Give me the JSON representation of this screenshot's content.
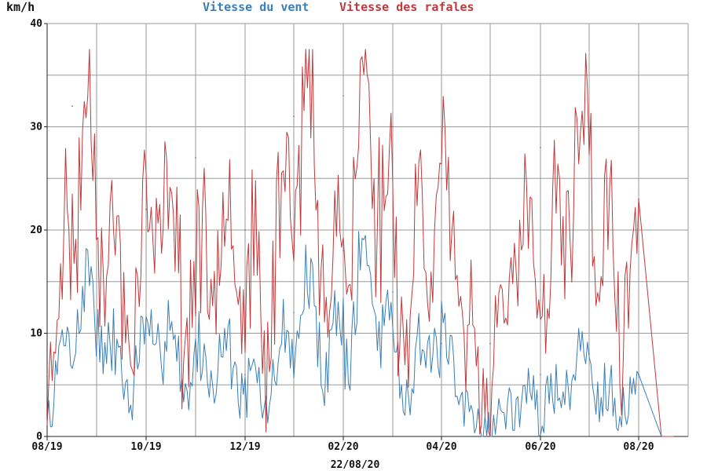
{
  "chart_data": {
    "type": "line",
    "ylabel": "km/h",
    "ylim": [
      0,
      40
    ],
    "yticks": [
      0,
      10,
      20,
      30,
      40
    ],
    "x_tick_labels": [
      "08/19",
      "10/19",
      "12/19",
      "02/20",
      "04/20",
      "06/20",
      "08/20"
    ],
    "date_label": "22/08/20",
    "grid": true,
    "legend_placement": "top-center",
    "series": [
      {
        "name": "Vitesse du vent",
        "color": "#3a7fb6",
        "x": [
          "08/19",
          "09/19",
          "10/19",
          "11/19",
          "12/19",
          "01/20",
          "02/20",
          "03/20",
          "04/20",
          "05/20",
          "06/20",
          "07/20",
          "08/20",
          "08/20 end"
        ],
        "values": [
          6,
          15,
          10,
          12,
          6,
          12,
          18,
          14,
          9,
          1,
          6,
          8,
          6,
          0
        ]
      },
      {
        "name": "Vitesse des rafales",
        "color": "#c0393b",
        "x": [
          "08/19",
          "09/19",
          "10/19",
          "11/19",
          "12/19",
          "01/20",
          "02/20",
          "03/20",
          "04/20",
          "05/20",
          "06/20",
          "07/20",
          "08/20",
          "08/20 end"
        ],
        "values": [
          14,
          32,
          22,
          27,
          20,
          31,
          33,
          30,
          25,
          9,
          28,
          30,
          23,
          0
        ]
      }
    ]
  }
}
